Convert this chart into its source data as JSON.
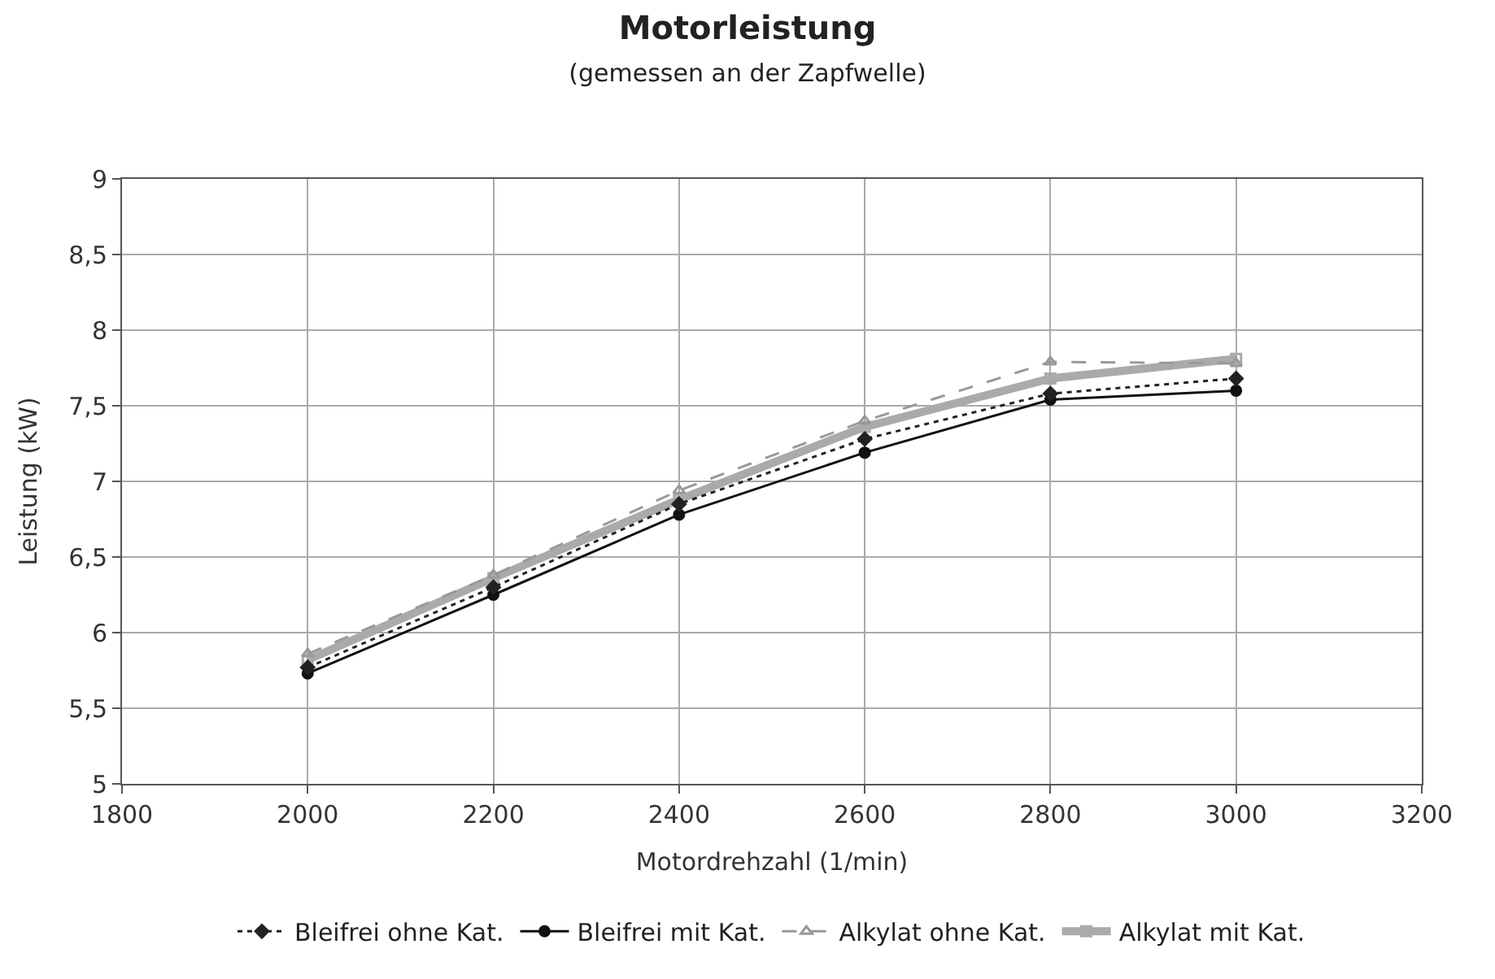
{
  "chart_data": {
    "type": "line",
    "title": "Motorleistung",
    "subtitle": "(gemessen an der Zapfwelle)",
    "xlabel": "Motordrehzahl (1/min)",
    "ylabel": "Leistung (kW)",
    "x": [
      2000,
      2200,
      2400,
      2600,
      2800,
      3000
    ],
    "xlim": [
      1800,
      3200
    ],
    "xticks": [
      1800,
      2000,
      2200,
      2400,
      2600,
      2800,
      3000,
      3200
    ],
    "ylim": [
      5,
      9
    ],
    "yticks": [
      5,
      {
        "value": 5.5,
        "label": "5,5"
      },
      6,
      {
        "value": 6.5,
        "label": "6,5"
      },
      7,
      {
        "value": 7.5,
        "label": "7,5"
      },
      8,
      {
        "value": 8.5,
        "label": "8,5"
      },
      9
    ],
    "grid": true,
    "legend": "bottom",
    "series": [
      {
        "name": "Bleifrei ohne Kat.",
        "color": "#222222",
        "line_style": "dotted",
        "marker": "diamond",
        "values": [
          5.77,
          6.3,
          6.85,
          7.28,
          7.58,
          7.68
        ]
      },
      {
        "name": "Bleifrei mit Kat.",
        "color": "#111111",
        "line_style": "solid",
        "marker": "circle",
        "values": [
          5.73,
          6.25,
          6.78,
          7.19,
          7.54,
          7.6
        ]
      },
      {
        "name": "Alkylat ohne Kat.",
        "color": "#999999",
        "line_style": "dashed",
        "marker": "triangle",
        "values": [
          5.86,
          6.38,
          6.94,
          7.4,
          7.79,
          7.78
        ]
      },
      {
        "name": "Alkylat mit Kat.",
        "color": "#aaaaaa",
        "line_style": "solid",
        "marker": "square",
        "values": [
          5.82,
          6.36,
          6.88,
          7.36,
          7.68,
          7.81
        ]
      }
    ]
  }
}
